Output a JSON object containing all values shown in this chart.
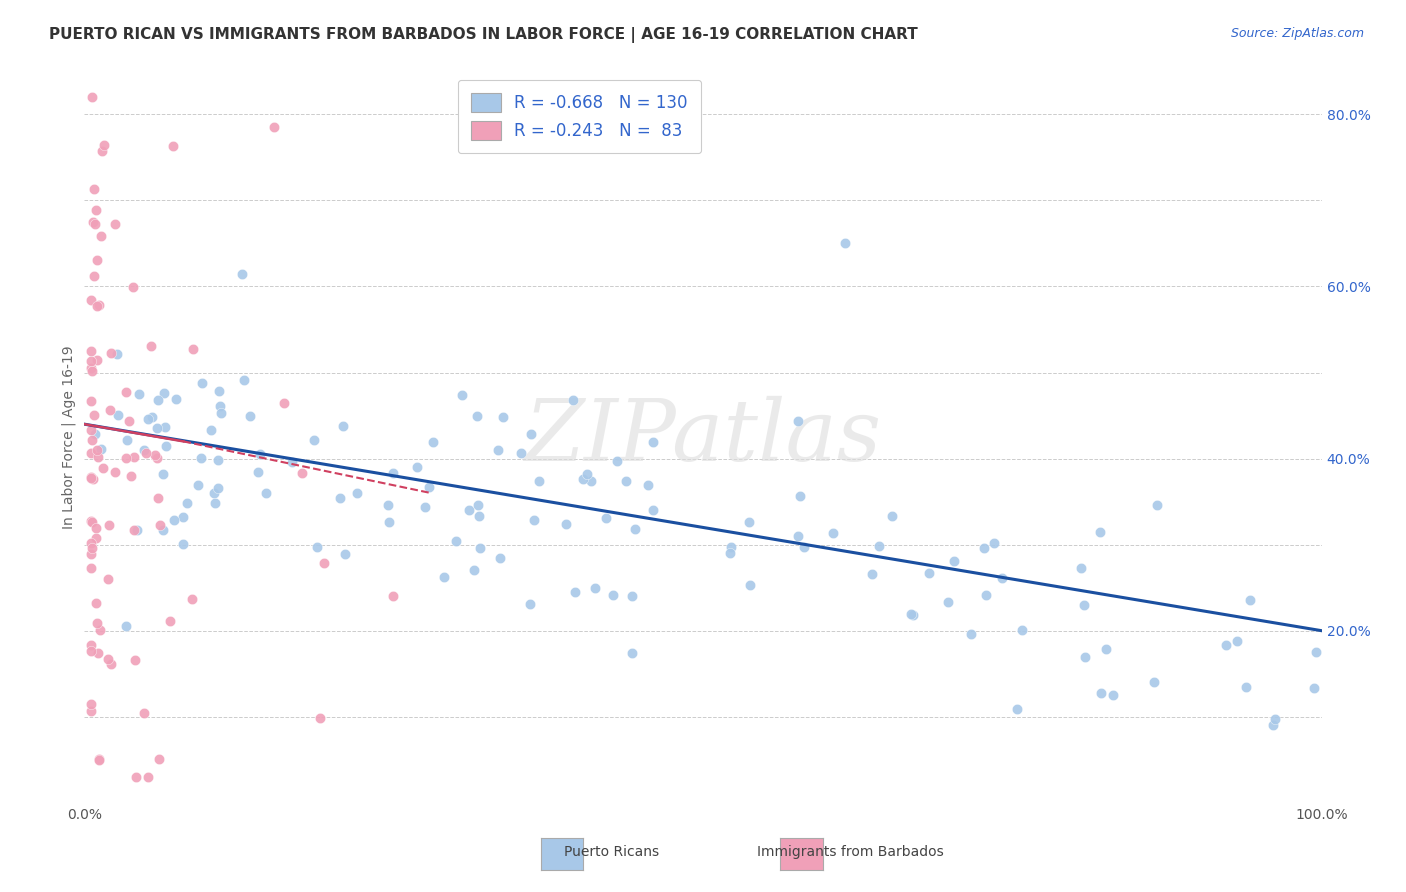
{
  "title": "PUERTO RICAN VS IMMIGRANTS FROM BARBADOS IN LABOR FORCE | AGE 16-19 CORRELATION CHART",
  "source_text": "Source: ZipAtlas.com",
  "ylabel": "In Labor Force | Age 16-19",
  "xlim": [
    0.0,
    1.0
  ],
  "ylim": [
    0.0,
    0.85
  ],
  "blue_color": "#a8c8e8",
  "pink_color": "#f0a0b8",
  "blue_line_color": "#1a4fa0",
  "pink_line_color": "#d04060",
  "background_color": "#ffffff",
  "grid_color": "#cccccc",
  "title_color": "#333333",
  "title_fontsize": 11,
  "source_fontsize": 9,
  "axis_label_color": "#666666",
  "tick_label_color": "#555555",
  "right_tick_color": "#3366cc",
  "legend_text_color": "#3366cc",
  "watermark": "ZIPatlas",
  "watermark_color": "#dddddd"
}
